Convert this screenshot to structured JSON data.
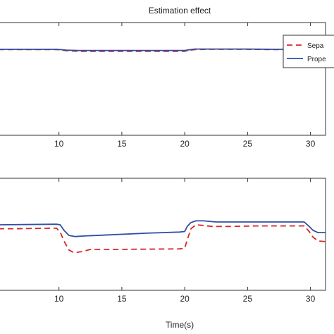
{
  "chart_data": [
    {
      "type": "line",
      "title": "Estimation effect",
      "xlabel": "",
      "ylabel": "",
      "xlim": [
        5.2,
        31.2
      ],
      "ylim": [
        -1,
        1
      ],
      "xticks": [
        10,
        15,
        20,
        25,
        30
      ],
      "xtick_labels": [
        "10",
        "15",
        "20",
        "25",
        "30"
      ],
      "grid": false,
      "legend_position": "top-right",
      "series": [
        {
          "name": "Sepa",
          "color": "#d62728",
          "dash": "dashed",
          "x": [
            5.2,
            9.8,
            10.1,
            10.6,
            11.5,
            14,
            17,
            19.5,
            20.0,
            20.3,
            20.8,
            22,
            25,
            27,
            29.6
          ],
          "y": [
            0.52,
            0.52,
            0.515,
            0.5,
            0.49,
            0.49,
            0.49,
            0.49,
            0.49,
            0.505,
            0.52,
            0.525,
            0.525,
            0.52,
            0.52
          ]
        },
        {
          "name": "Prope",
          "color": "#2f4fa2",
          "dash": "solid",
          "x": [
            5.2,
            9.8,
            10.1,
            10.6,
            11.5,
            14,
            17,
            19.5,
            20.0,
            20.3,
            20.8,
            22,
            25,
            27,
            29.6
          ],
          "y": [
            0.525,
            0.525,
            0.52,
            0.51,
            0.505,
            0.505,
            0.505,
            0.505,
            0.505,
            0.515,
            0.53,
            0.53,
            0.53,
            0.525,
            0.525
          ]
        }
      ]
    },
    {
      "type": "line",
      "title": "",
      "xlabel": "Time(s)",
      "ylabel": "",
      "xlim": [
        5.2,
        31.2
      ],
      "ylim": [
        -1,
        1
      ],
      "xticks": [
        10,
        15,
        20,
        25,
        30
      ],
      "xtick_labels": [
        "10",
        "15",
        "20",
        "25",
        "30"
      ],
      "grid": false,
      "series": [
        {
          "name": "Sepa",
          "color": "#d62728",
          "dash": "dashed",
          "x": [
            5.2,
            6.5,
            9.8,
            10.1,
            10.4,
            10.8,
            11.2,
            11.8,
            12.5,
            14,
            17,
            19.6,
            20.0,
            20.2,
            20.5,
            20.9,
            21.4,
            22.2,
            23.5,
            26,
            29.5,
            29.9,
            30.2,
            30.6,
            31.2
          ],
          "y": [
            0.1,
            0.1,
            0.11,
            0.04,
            -0.12,
            -0.28,
            -0.33,
            -0.31,
            -0.27,
            -0.27,
            -0.265,
            -0.26,
            -0.25,
            -0.1,
            0.1,
            0.17,
            0.16,
            0.14,
            0.14,
            0.15,
            0.15,
            0.05,
            -0.05,
            -0.12,
            -0.13
          ]
        },
        {
          "name": "Prope",
          "color": "#2f4fa2",
          "dash": "solid",
          "x": [
            5.2,
            9.8,
            10.1,
            10.4,
            10.8,
            11.3,
            12,
            14,
            17,
            19.6,
            20.0,
            20.2,
            20.5,
            20.9,
            21.5,
            22.5,
            25,
            29.5,
            29.9,
            30.2,
            30.6,
            31.2
          ],
          "y": [
            0.17,
            0.18,
            0.17,
            0.07,
            -0.02,
            -0.04,
            -0.03,
            -0.01,
            0.02,
            0.04,
            0.05,
            0.14,
            0.21,
            0.24,
            0.24,
            0.22,
            0.22,
            0.22,
            0.14,
            0.07,
            0.03,
            0.03
          ]
        }
      ]
    }
  ]
}
